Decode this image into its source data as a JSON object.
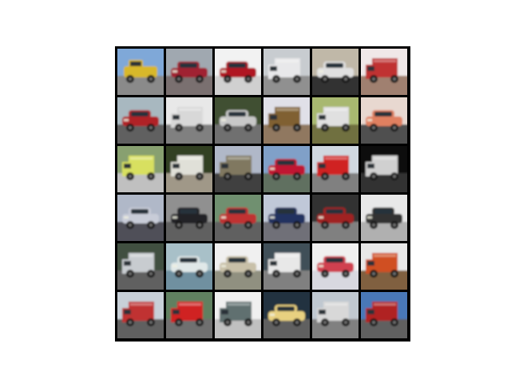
{
  "grid": {
    "rows": 6,
    "cols": 6,
    "tiles": [
      {
        "subject": "pickup-truck",
        "sky": "#7fa8d8",
        "ground": "#8a8a8a",
        "body": "#d8b82a",
        "kind": "pickup"
      },
      {
        "subject": "car",
        "sky": "#a0a8b0",
        "ground": "#7a7070",
        "body": "#a02030",
        "kind": "car"
      },
      {
        "subject": "car",
        "sky": "#f2f2f2",
        "ground": "#d0d0d0",
        "body": "#b01820",
        "kind": "car"
      },
      {
        "subject": "truck",
        "sky": "#c8ccd0",
        "ground": "#909090",
        "body": "#e8e8ea",
        "kind": "truck"
      },
      {
        "subject": "car",
        "sky": "#c0b8a8",
        "ground": "#303030",
        "body": "#e0e0e0",
        "kind": "car"
      },
      {
        "subject": "truck",
        "sky": "#f0e8e8",
        "ground": "#a08070",
        "body": "#c03030",
        "kind": "truck"
      },
      {
        "subject": "car",
        "sky": "#a8b8c0",
        "ground": "#606060",
        "body": "#b02028",
        "kind": "car"
      },
      {
        "subject": "truck",
        "sky": "#e8e8e8",
        "ground": "#808080",
        "body": "#d8d8d8",
        "kind": "truck"
      },
      {
        "subject": "car",
        "sky": "#405030",
        "ground": "#707070",
        "body": "#c8c8c8",
        "kind": "car"
      },
      {
        "subject": "truck",
        "sky": "#e0e0e8",
        "ground": "#907860",
        "body": "#806030",
        "kind": "truck"
      },
      {
        "subject": "truck",
        "sky": "#a8b870",
        "ground": "#707040",
        "body": "#e0e0e0",
        "kind": "truck"
      },
      {
        "subject": "car",
        "sky": "#e8d8d0",
        "ground": "#505050",
        "body": "#e08060",
        "kind": "car"
      },
      {
        "subject": "truck",
        "sky": "#88a070",
        "ground": "#c0c0c0",
        "body": "#d8e060",
        "kind": "truck"
      },
      {
        "subject": "truck",
        "sky": "#304020",
        "ground": "#a09888",
        "body": "#e0e0d8",
        "kind": "truck"
      },
      {
        "subject": "truck",
        "sky": "#b0b8c8",
        "ground": "#404040",
        "body": "#807860",
        "kind": "truck"
      },
      {
        "subject": "car",
        "sky": "#80a0c8",
        "ground": "#607060",
        "body": "#c01830",
        "kind": "car"
      },
      {
        "subject": "truck",
        "sky": "#d0d8e0",
        "ground": "#808080",
        "body": "#d02020",
        "kind": "truck"
      },
      {
        "subject": "truck",
        "sky": "#101010",
        "ground": "#303030",
        "body": "#d0d0d0",
        "kind": "truck"
      },
      {
        "subject": "car",
        "sky": "#b0b8c8",
        "ground": "#505058",
        "body": "#c8ccd8",
        "kind": "car"
      },
      {
        "subject": "car",
        "sky": "#909090",
        "ground": "#606060",
        "body": "#202428",
        "kind": "car"
      },
      {
        "subject": "car",
        "sky": "#709070",
        "ground": "#606060",
        "body": "#c03030",
        "kind": "car"
      },
      {
        "subject": "car",
        "sky": "#c0c8d8",
        "ground": "#707078",
        "body": "#203060",
        "kind": "car"
      },
      {
        "subject": "car",
        "sky": "#303030",
        "ground": "#808080",
        "body": "#a02020",
        "kind": "car"
      },
      {
        "subject": "car",
        "sky": "#e8e8e8",
        "ground": "#b0b0b0",
        "body": "#303030",
        "kind": "car"
      },
      {
        "subject": "truck",
        "sky": "#405040",
        "ground": "#606060",
        "body": "#c8ccd0",
        "kind": "truck"
      },
      {
        "subject": "car",
        "sky": "#a8c0c8",
        "ground": "#7090a0",
        "body": "#e0e8e8",
        "kind": "car"
      },
      {
        "subject": "car",
        "sky": "#f0f0f0",
        "ground": "#909080",
        "body": "#c8c0a8",
        "kind": "car"
      },
      {
        "subject": "truck",
        "sky": "#405058",
        "ground": "#808080",
        "body": "#e8e8e8",
        "kind": "truck"
      },
      {
        "subject": "car",
        "sky": "#f0f0f0",
        "ground": "#d8d8e0",
        "body": "#d04050",
        "kind": "car"
      },
      {
        "subject": "truck",
        "sky": "#e8e8e8",
        "ground": "#806040",
        "body": "#d05020",
        "kind": "truck"
      },
      {
        "subject": "truck",
        "sky": "#c8d0d8",
        "ground": "#606060",
        "body": "#c03030",
        "kind": "truck"
      },
      {
        "subject": "truck",
        "sky": "#608060",
        "ground": "#707070",
        "body": "#d02020",
        "kind": "truck"
      },
      {
        "subject": "truck",
        "sky": "#f0f0f0",
        "ground": "#c0c0c0",
        "body": "#607070",
        "kind": "truck"
      },
      {
        "subject": "car",
        "sky": "#203040",
        "ground": "#606060",
        "body": "#e8d080",
        "kind": "car"
      },
      {
        "subject": "truck",
        "sky": "#c0c8d0",
        "ground": "#808080",
        "body": "#d8d8d8",
        "kind": "truck"
      },
      {
        "subject": "truck",
        "sky": "#4878b8",
        "ground": "#606060",
        "body": "#b02020",
        "kind": "truck"
      }
    ]
  }
}
